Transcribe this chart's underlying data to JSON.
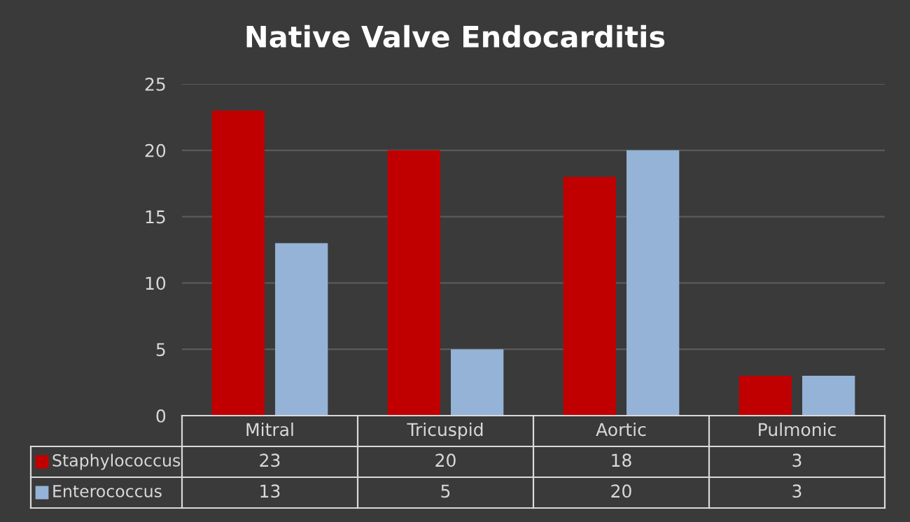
{
  "chart_data": {
    "type": "bar",
    "title": "Native Valve Endocarditis",
    "categories": [
      "Mitral",
      "Tricuspid",
      "Aortic",
      "Pulmonic"
    ],
    "series": [
      {
        "name": "Staphylococcus",
        "color": "#c00000",
        "values": [
          23,
          20,
          18,
          3
        ]
      },
      {
        "name": "Enterococcus",
        "color": "#95b3d7",
        "values": [
          13,
          5,
          20,
          3
        ]
      }
    ],
    "ylim": [
      0,
      25
    ],
    "yticks": [
      0,
      5,
      10,
      15,
      20,
      25
    ],
    "grid": "y",
    "legend": "bottom",
    "data_labels": true
  }
}
